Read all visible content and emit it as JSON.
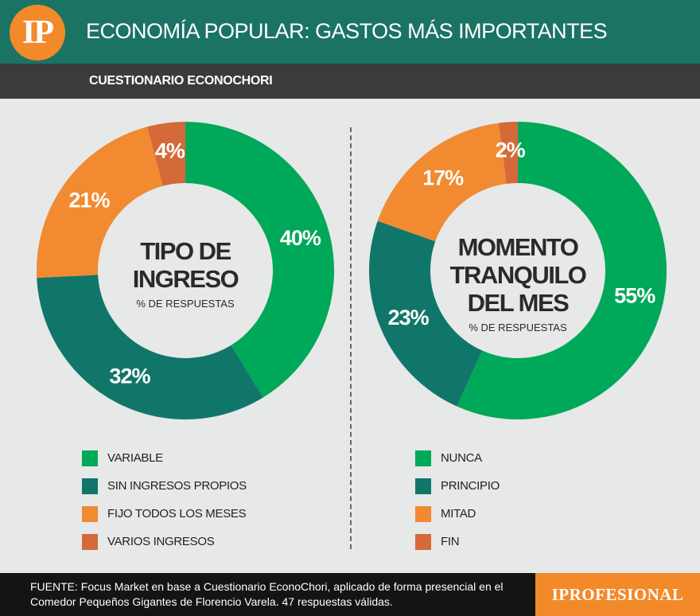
{
  "header": {
    "logo": "IP",
    "title": "ECONOMÍA POPULAR: GASTOS MÁS IMPORTANTES"
  },
  "subheader": {
    "title": "CUESTIONARIO ECONOCHORI"
  },
  "colors": {
    "green": "#00a859",
    "teal": "#11766a",
    "orange": "#f28a32",
    "rust": "#d4693a"
  },
  "chart_data": [
    {
      "type": "pie",
      "center_title": [
        "TIPO DE",
        "INGRESO"
      ],
      "center_subtitle": "% DE RESPUESTAS",
      "categories": [
        "VARIABLE",
        "SIN INGRESOS PROPIOS",
        "FIJO TODOS LOS MESES",
        "VARIOS INGRESOS"
      ],
      "values": [
        40,
        32,
        21,
        4
      ],
      "labels": [
        "40%",
        "32%",
        "21%",
        "4%"
      ],
      "colors": [
        "#00a859",
        "#11766a",
        "#f28a32",
        "#d4693a"
      ]
    },
    {
      "type": "pie",
      "center_title": [
        "MOMENTO",
        "TRANQUILO",
        "DEL MES"
      ],
      "center_subtitle": "% DE RESPUESTAS",
      "categories": [
        "NUNCA",
        "PRINCIPIO",
        "MITAD",
        "FIN"
      ],
      "values": [
        55,
        23,
        17,
        2
      ],
      "labels": [
        "55%",
        "23%",
        "17%",
        "2%"
      ],
      "colors": [
        "#00a859",
        "#11766a",
        "#f28a32",
        "#d4693a"
      ]
    }
  ],
  "footer": {
    "source": "FUENTE: Focus Market en base a Cuestionario EconoChori, aplicado de forma presencial en el Comedor Pequeños Gigantes de Florencio Varela. 47 respuestas válidas.",
    "brand": "IPROFESIONAL"
  }
}
